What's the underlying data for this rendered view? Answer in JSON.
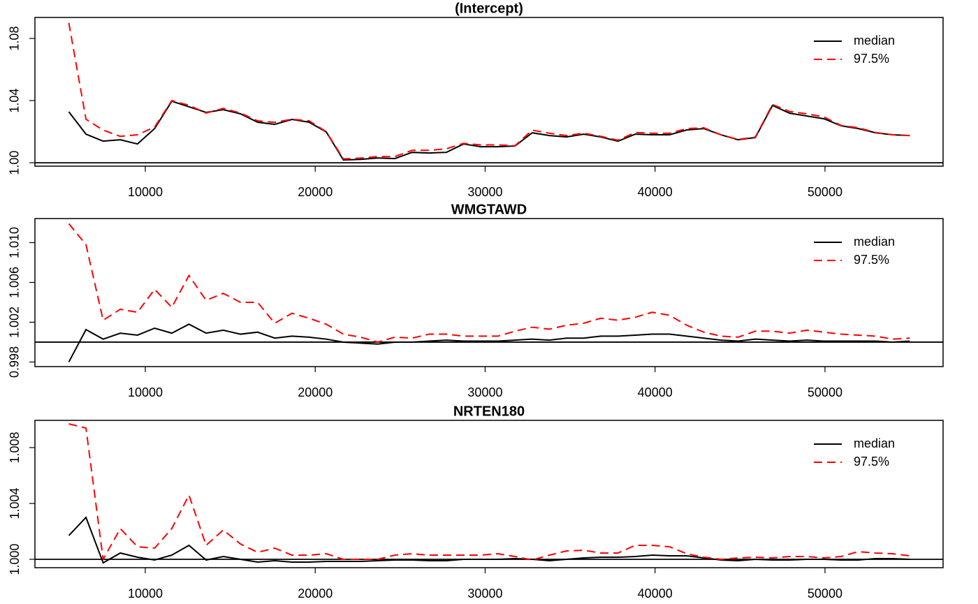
{
  "chart_data": [
    {
      "type": "line",
      "title": "(Intercept)",
      "legend": "topright",
      "hline": 1,
      "xlim": [
        3505,
        56950
      ],
      "xticks": [
        10000,
        20000,
        30000,
        40000,
        50000
      ],
      "ylim": [
        0.9978,
        1.0935
      ],
      "yticks": [
        {
          "value": 1,
          "label": "1.00"
        },
        1.04,
        1.08
      ],
      "x": [
        5500,
        6510,
        7520,
        8530,
        9540,
        10550,
        11560,
        12570,
        13580,
        14590,
        15600,
        16610,
        17620,
        18630,
        19640,
        20650,
        21660,
        22670,
        23680,
        24690,
        25700,
        26710,
        27720,
        28730,
        29740,
        30750,
        31760,
        32770,
        33780,
        34790,
        35800,
        36810,
        37820,
        38830,
        39840,
        40850,
        41860,
        42870,
        43880,
        44890,
        45900,
        46910,
        47920,
        48930,
        49940,
        50950,
        51960,
        52970,
        53980,
        54990
      ],
      "series": [
        {
          "name": "median",
          "color": "#000000",
          "dashed": false,
          "values": [
            1.0328,
            1.0184,
            1.0139,
            1.0148,
            1.0121,
            1.022,
            1.0396,
            1.036,
            1.0324,
            1.0342,
            1.0315,
            1.0261,
            1.0247,
            1.0279,
            1.0261,
            1.0198,
            1.0018,
            1.0022,
            1.0031,
            1.0027,
            1.0067,
            1.0063,
            1.0067,
            1.0121,
            1.0103,
            1.0103,
            1.0108,
            1.0193,
            1.0175,
            1.0166,
            1.0184,
            1.0166,
            1.0139,
            1.0184,
            1.018,
            1.018,
            1.0211,
            1.022,
            1.018,
            1.0148,
            1.0162,
            1.0369,
            1.0319,
            1.0301,
            1.0283,
            1.0238,
            1.022,
            1.0193,
            1.018,
            1.0175
          ]
        },
        {
          "name": "97.5%",
          "color": "#ff0000",
          "dashed": true,
          "values": [
            1.09,
            1.028,
            1.021,
            1.017,
            1.018,
            1.023,
            1.04,
            1.037,
            1.032,
            1.035,
            1.032,
            1.027,
            1.026,
            1.028,
            1.027,
            1.02,
            1.0025,
            1.003,
            1.004,
            1.004,
            1.008,
            1.008,
            1.009,
            1.0125,
            1.0115,
            1.0115,
            1.011,
            1.021,
            1.019,
            1.0175,
            1.019,
            1.017,
            1.0145,
            1.0195,
            1.019,
            1.019,
            1.022,
            1.0225,
            1.018,
            1.015,
            1.0165,
            1.0375,
            1.033,
            1.0315,
            1.0295,
            1.024,
            1.0225,
            1.0195,
            1.018,
            1.0175
          ]
        }
      ]
    },
    {
      "type": "line",
      "title": "WMGTAWD",
      "legend": "topright",
      "hline": 1,
      "xlim": [
        3505,
        56950
      ],
      "xticks": [
        10000,
        20000,
        30000,
        40000,
        50000
      ],
      "ylim": [
        0.99754,
        1.01242
      ],
      "yticks": [
        0.998,
        1.002,
        1.006,
        {
          "value": 1.01,
          "label": "1.010"
        }
      ],
      "x": [
        5500,
        6510,
        7520,
        8530,
        9540,
        10550,
        11560,
        12570,
        13580,
        14590,
        15600,
        16610,
        17620,
        18630,
        19640,
        20650,
        21660,
        22670,
        23680,
        24690,
        25700,
        26710,
        27720,
        28730,
        29740,
        30750,
        31760,
        32770,
        33780,
        34790,
        35800,
        36810,
        37820,
        38830,
        39840,
        40850,
        41860,
        42870,
        43880,
        44890,
        45900,
        46910,
        47920,
        48930,
        49940,
        50950,
        51960,
        52970,
        53980,
        54990
      ],
      "series": [
        {
          "name": "median",
          "color": "#000000",
          "dashed": false,
          "values": [
            0.998,
            1.00126,
            1.0003,
            1.0009,
            1.0007,
            1.0014,
            1.0009,
            1.0018,
            1.0009,
            1.0012,
            1.0008,
            1.001,
            1.0004,
            1.0006,
            1.0005,
            1.0003,
            1.0,
            0.9999,
            0.9998,
            1.0,
            1.0,
            1.0001,
            1.0002,
            1.0001,
            1.0001,
            1.0001,
            1.0002,
            1.0003,
            1.0002,
            1.0004,
            1.0004,
            1.0006,
            1.0006,
            1.0007,
            1.0008,
            1.0008,
            1.0006,
            1.0004,
            1.0002,
            1.0001,
            1.0003,
            1.0002,
            1.0001,
            1.0002,
            1.0001,
            1.0001,
            1.0001,
            1.0001,
            1.0,
            1.0001
          ]
        },
        {
          "name": "97.5%",
          "color": "#ff0000",
          "dashed": true,
          "values": [
            1.0119,
            1.0098,
            1.0022,
            1.0033,
            1.003,
            1.0053,
            1.0035,
            1.0067,
            1.0042,
            1.0049,
            1.004,
            1.004,
            1.0019,
            1.0029,
            1.0024,
            1.0018,
            1.0008,
            1.0005,
            1.0,
            1.0005,
            1.0004,
            1.0008,
            1.0008,
            1.0006,
            1.0006,
            1.0006,
            1.0011,
            1.0015,
            1.0013,
            1.0017,
            1.0019,
            1.0024,
            1.0022,
            1.0025,
            1.003,
            1.0027,
            1.0017,
            1.001,
            1.0006,
            1.0005,
            1.0011,
            1.0011,
            1.0009,
            1.0012,
            1.001,
            1.0008,
            1.0007,
            1.0006,
            1.0003,
            1.0004
          ]
        }
      ]
    },
    {
      "type": "line",
      "title": "NRTEN180",
      "legend": "topright",
      "hline": 1,
      "xlim": [
        3505,
        56950
      ],
      "xticks": [
        10000,
        20000,
        30000,
        40000,
        50000
      ],
      "ylim": [
        0.9994,
        1.00995
      ],
      "yticks": [
        {
          "value": 1,
          "label": "1.000"
        },
        1.004,
        1.008
      ],
      "x": [
        5500,
        6510,
        7520,
        8530,
        9540,
        10550,
        11560,
        12570,
        13580,
        14590,
        15600,
        16610,
        17620,
        18630,
        19640,
        20650,
        21660,
        22670,
        23680,
        24690,
        25700,
        26710,
        27720,
        28730,
        29740,
        30750,
        31760,
        32770,
        33780,
        34790,
        35800,
        36810,
        37820,
        38830,
        39840,
        40850,
        41860,
        42870,
        43880,
        44890,
        45900,
        46910,
        47920,
        48930,
        49940,
        50950,
        51960,
        52970,
        53980,
        54990
      ],
      "series": [
        {
          "name": "median",
          "color": "#000000",
          "dashed": false,
          "values": [
            1.0017,
            1.003,
            0.99975,
            1.00045,
            1.00015,
            0.99995,
            1.0003,
            1.001,
            0.99995,
            1.0002,
            1.0,
            0.9998,
            0.9999,
            0.9998,
            0.9998,
            0.99985,
            0.99985,
            0.99985,
            0.9999,
            0.99995,
            0.99995,
            0.9999,
            0.9999,
            1.0,
            1.0,
            1.0,
            1.00005,
            1.0,
            0.9999,
            1.0,
            1.0001,
            1.00015,
            1.00015,
            1.0002,
            1.0003,
            1.00025,
            1.00025,
            1.0001,
            0.99995,
            0.9999,
            1.0,
            0.99995,
            0.99995,
            1.0,
            1.0,
            0.99995,
            0.99995,
            1.00005,
            1.00005,
            1.0
          ]
        },
        {
          "name": "97.5%",
          "color": "#ff0000",
          "dashed": true,
          "values": [
            1.0097,
            1.0094,
            1.0,
            1.0022,
            1.0009,
            1.0008,
            1.0022,
            1.0046,
            1.001,
            1.0021,
            1.0011,
            1.0005,
            1.0008,
            1.0003,
            1.0003,
            1.0004,
            1.0,
            1.0,
            1.0,
            1.0003,
            1.0004,
            1.0003,
            1.0003,
            1.0003,
            1.0003,
            1.0004,
            1.0002,
            0.99995,
            1.0003,
            1.0006,
            1.00065,
            1.00045,
            1.00045,
            1.001,
            1.001,
            1.0009,
            1.0004,
            1.00015,
            1.0,
            1.0001,
            1.00015,
            1.0001,
            1.0002,
            1.0002,
            1.0001,
            1.0002,
            1.00055,
            1.00045,
            1.0004,
            1.00025
          ]
        }
      ]
    }
  ]
}
